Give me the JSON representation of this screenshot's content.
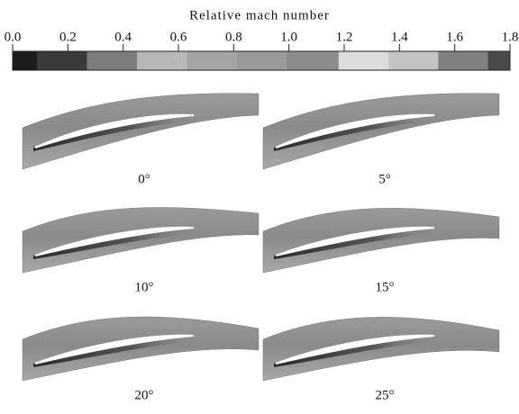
{
  "colorbar": {
    "title": "Relative mach number",
    "lim": [
      0,
      1.8
    ],
    "ticks": [
      {
        "value": 0,
        "label": "0.0"
      },
      {
        "value": 0.2,
        "label": "0.2"
      },
      {
        "value": 0.4,
        "label": "0.4"
      },
      {
        "value": 0.6,
        "label": "0.6"
      },
      {
        "value": 0.8,
        "label": "0.8"
      },
      {
        "value": 1,
        "label": "1.0"
      },
      1.2,
      1.4,
      1.6,
      1.8
    ],
    "bounds": [
      0,
      0.09,
      0.27,
      0.45,
      0.63,
      0.81,
      0.99,
      1.18,
      1.36,
      1.54,
      1.72,
      1.8
    ],
    "colors": [
      "#1c1c1c",
      "#3a3a3a",
      "#7c7c7c",
      "#b8b8b8",
      "#a4a4a4",
      "#9a9a9a",
      "#8c8c8c",
      "#dcdcdc",
      "#c4c4c4",
      "#808080",
      "#4a4a4a"
    ]
  },
  "panels": [
    {
      "label": "0°"
    },
    {
      "label": "5°"
    },
    {
      "label": "10°"
    },
    {
      "label": "15°"
    },
    {
      "label": "20°"
    },
    {
      "label": "25°"
    }
  ]
}
